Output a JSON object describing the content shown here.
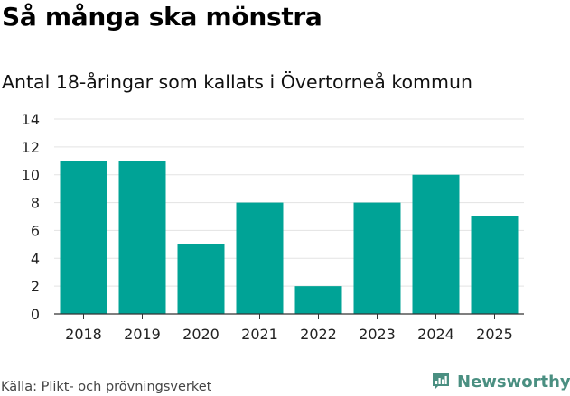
{
  "title": "Så många ska mönstra",
  "subtitle": "Antal 18-åringar som kallats i Övertorneå kommun",
  "source": "Källa: Plikt- och prövningsverket",
  "brand": {
    "name": "Newsworthy",
    "icon": "bar-chart-icon",
    "color": "#4a8f81"
  },
  "colors": {
    "bar": "#00a396",
    "grid": "#e3e3e3",
    "axis": "#333333"
  },
  "chart_data": {
    "type": "bar",
    "categories": [
      "2018",
      "2019",
      "2020",
      "2021",
      "2022",
      "2023",
      "2024",
      "2025"
    ],
    "values": [
      11,
      11,
      5,
      8,
      2,
      8,
      10,
      7
    ],
    "ylim": [
      0,
      14
    ],
    "yticks": [
      0,
      2,
      4,
      6,
      8,
      10,
      12,
      14
    ],
    "grid": true
  }
}
